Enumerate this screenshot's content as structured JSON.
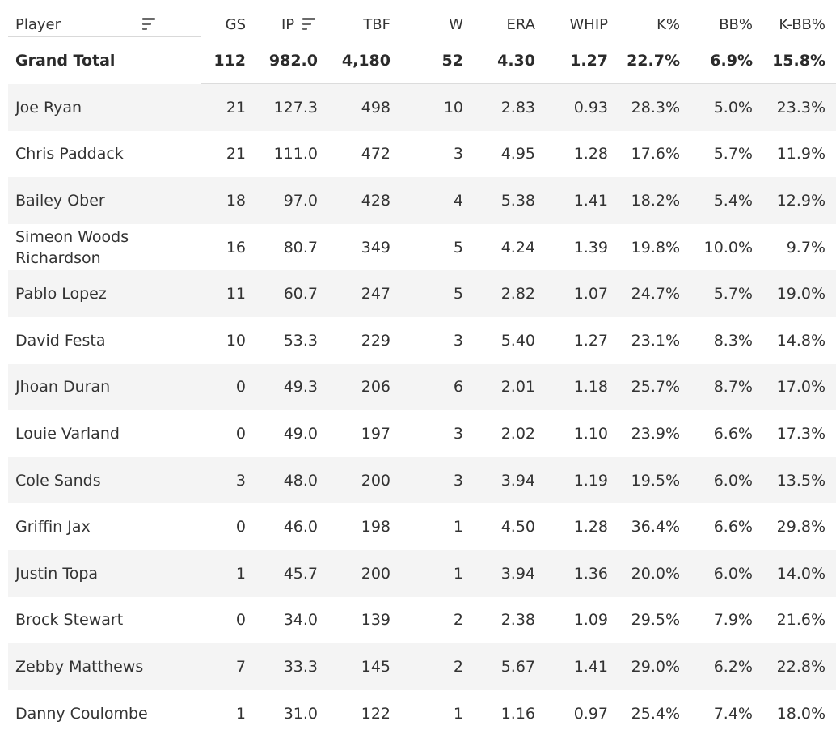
{
  "columns": [
    {
      "key": "player",
      "label": "Player"
    },
    {
      "key": "gs",
      "label": "GS"
    },
    {
      "key": "ip",
      "label": "IP"
    },
    {
      "key": "tbf",
      "label": "TBF"
    },
    {
      "key": "w",
      "label": "W"
    },
    {
      "key": "era",
      "label": "ERA"
    },
    {
      "key": "whip",
      "label": "WHIP"
    },
    {
      "key": "k",
      "label": "K%"
    },
    {
      "key": "bb",
      "label": "BB%"
    },
    {
      "key": "kbb",
      "label": "K-BB%"
    }
  ],
  "grand_total": {
    "player": "Grand Total",
    "gs": "112",
    "ip": "982.0",
    "tbf": "4,180",
    "w": "52",
    "era": "4.30",
    "whip": "1.27",
    "k": "22.7%",
    "bb": "6.9%",
    "kbb": "15.8%"
  },
  "rows": [
    {
      "player": "Joe Ryan",
      "gs": "21",
      "ip": "127.3",
      "tbf": "498",
      "w": "10",
      "era": "2.83",
      "whip": "0.93",
      "k": "28.3%",
      "bb": "5.0%",
      "kbb": "23.3%"
    },
    {
      "player": "Chris Paddack",
      "gs": "21",
      "ip": "111.0",
      "tbf": "472",
      "w": "3",
      "era": "4.95",
      "whip": "1.28",
      "k": "17.6%",
      "bb": "5.7%",
      "kbb": "11.9%"
    },
    {
      "player": "Bailey Ober",
      "gs": "18",
      "ip": "97.0",
      "tbf": "428",
      "w": "4",
      "era": "5.38",
      "whip": "1.41",
      "k": "18.2%",
      "bb": "5.4%",
      "kbb": "12.9%"
    },
    {
      "player": "Simeon Woods Richardson",
      "gs": "16",
      "ip": "80.7",
      "tbf": "349",
      "w": "5",
      "era": "4.24",
      "whip": "1.39",
      "k": "19.8%",
      "bb": "10.0%",
      "kbb": "9.7%"
    },
    {
      "player": "Pablo Lopez",
      "gs": "11",
      "ip": "60.7",
      "tbf": "247",
      "w": "5",
      "era": "2.82",
      "whip": "1.07",
      "k": "24.7%",
      "bb": "5.7%",
      "kbb": "19.0%"
    },
    {
      "player": "David Festa",
      "gs": "10",
      "ip": "53.3",
      "tbf": "229",
      "w": "3",
      "era": "5.40",
      "whip": "1.27",
      "k": "23.1%",
      "bb": "8.3%",
      "kbb": "14.8%"
    },
    {
      "player": "Jhoan Duran",
      "gs": "0",
      "ip": "49.3",
      "tbf": "206",
      "w": "6",
      "era": "2.01",
      "whip": "1.18",
      "k": "25.7%",
      "bb": "8.7%",
      "kbb": "17.0%"
    },
    {
      "player": "Louie Varland",
      "gs": "0",
      "ip": "49.0",
      "tbf": "197",
      "w": "3",
      "era": "2.02",
      "whip": "1.10",
      "k": "23.9%",
      "bb": "6.6%",
      "kbb": "17.3%"
    },
    {
      "player": "Cole Sands",
      "gs": "3",
      "ip": "48.0",
      "tbf": "200",
      "w": "3",
      "era": "3.94",
      "whip": "1.19",
      "k": "19.5%",
      "bb": "6.0%",
      "kbb": "13.5%"
    },
    {
      "player": "Griffin Jax",
      "gs": "0",
      "ip": "46.0",
      "tbf": "198",
      "w": "1",
      "era": "4.50",
      "whip": "1.28",
      "k": "36.4%",
      "bb": "6.6%",
      "kbb": "29.8%"
    },
    {
      "player": "Justin Topa",
      "gs": "1",
      "ip": "45.7",
      "tbf": "200",
      "w": "1",
      "era": "3.94",
      "whip": "1.36",
      "k": "20.0%",
      "bb": "6.0%",
      "kbb": "14.0%"
    },
    {
      "player": "Brock Stewart",
      "gs": "0",
      "ip": "34.0",
      "tbf": "139",
      "w": "2",
      "era": "2.38",
      "whip": "1.09",
      "k": "29.5%",
      "bb": "7.9%",
      "kbb": "21.6%"
    },
    {
      "player": "Zebby Matthews",
      "gs": "7",
      "ip": "33.3",
      "tbf": "145",
      "w": "2",
      "era": "5.67",
      "whip": "1.41",
      "k": "29.0%",
      "bb": "6.2%",
      "kbb": "22.8%"
    },
    {
      "player": "Danny Coulombe",
      "gs": "1",
      "ip": "31.0",
      "tbf": "122",
      "w": "1",
      "era": "1.16",
      "whip": "0.97",
      "k": "25.4%",
      "bb": "7.4%",
      "kbb": "18.0%"
    }
  ],
  "icons": {
    "player_sort": "sort-descending-icon",
    "ip_sort": "sort-descending-icon"
  },
  "colors": {
    "alt_row": "#f4f4f4",
    "text": "#333333"
  }
}
